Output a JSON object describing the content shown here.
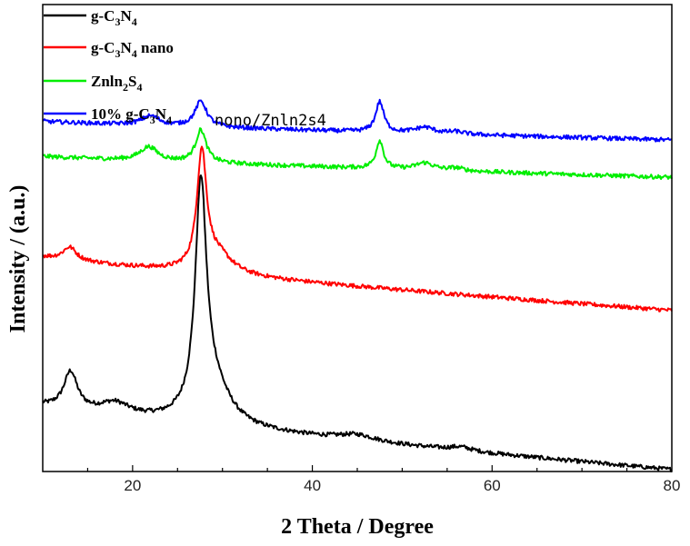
{
  "chart_data": {
    "type": "line",
    "title": "",
    "xlabel": "2 Theta / Degree",
    "ylabel": "Intensity / (a.u.)",
    "xlim": [
      10,
      80
    ],
    "xticks": [
      20,
      40,
      60,
      80
    ],
    "ylim": [
      0,
      100
    ],
    "y_ticks_labeled": false,
    "grid": false,
    "legend_position": "top-left",
    "series": [
      {
        "name": "g-C3N4",
        "color": "#000000",
        "baseline": 14,
        "peaks": [
          {
            "x": 13.1,
            "height": 8,
            "width": 0.9
          },
          {
            "x": 18.0,
            "height": 2.5,
            "width": 2.0
          },
          {
            "x": 27.6,
            "height": 48,
            "width": 0.75
          },
          {
            "x": 29.0,
            "height": 8,
            "width": 2.2
          },
          {
            "x": 45.0,
            "height": 1.3,
            "width": 2.5
          },
          {
            "x": 56.5,
            "height": 0.8,
            "width": 1.5
          }
        ],
        "end_value": 0.4
      },
      {
        "name": "g-C3N4 nano",
        "color": "#ff0000",
        "baseline": 46,
        "peaks": [
          {
            "x": 13.0,
            "height": 2.8,
            "width": 0.9
          },
          {
            "x": 27.7,
            "height": 25,
            "width": 0.65
          },
          {
            "x": 29.5,
            "height": 4,
            "width": 2.0
          }
        ],
        "end_value": 34.5
      },
      {
        "name": "ZnIn2S4",
        "color": "#00ee00",
        "baseline": 67.5,
        "peaks": [
          {
            "x": 21.8,
            "height": 3,
            "width": 1.2
          },
          {
            "x": 27.6,
            "height": 7,
            "width": 0.7
          },
          {
            "x": 47.5,
            "height": 6,
            "width": 0.5
          },
          {
            "x": 52.5,
            "height": 1.5,
            "width": 1.2
          },
          {
            "x": 56.0,
            "height": 0.6,
            "width": 1.0
          }
        ],
        "end_value": 63
      },
      {
        "name": "10% g-C3N4 nono/ZnIn2S4",
        "color": "#0000ff",
        "baseline": 75,
        "peaks": [
          {
            "x": 22.0,
            "height": 2,
            "width": 1.2
          },
          {
            "x": 27.6,
            "height": 5.5,
            "width": 0.8
          },
          {
            "x": 47.5,
            "height": 6.5,
            "width": 0.55
          },
          {
            "x": 52.5,
            "height": 1.3,
            "width": 1.3
          },
          {
            "x": 56.0,
            "height": 0.5,
            "width": 1.0
          }
        ],
        "end_value": 71
      }
    ]
  },
  "legend": {
    "entries": [
      {
        "main": "g-C",
        "sub1": "3",
        "mid": "N",
        "sub2": "4",
        "suffix": "",
        "extra": ""
      },
      {
        "main": "g-C",
        "sub1": "3",
        "mid": "N",
        "sub2": "4",
        "suffix": " nano",
        "extra": ""
      },
      {
        "main": "Znln",
        "sub1": "2",
        "mid": "S",
        "sub2": "4",
        "suffix": "",
        "extra": ""
      },
      {
        "main": "10% g-C",
        "sub1": "3",
        "mid": "N",
        "sub2": "4",
        "suffix": "",
        "extra": "nono/Znln2s4"
      }
    ]
  }
}
